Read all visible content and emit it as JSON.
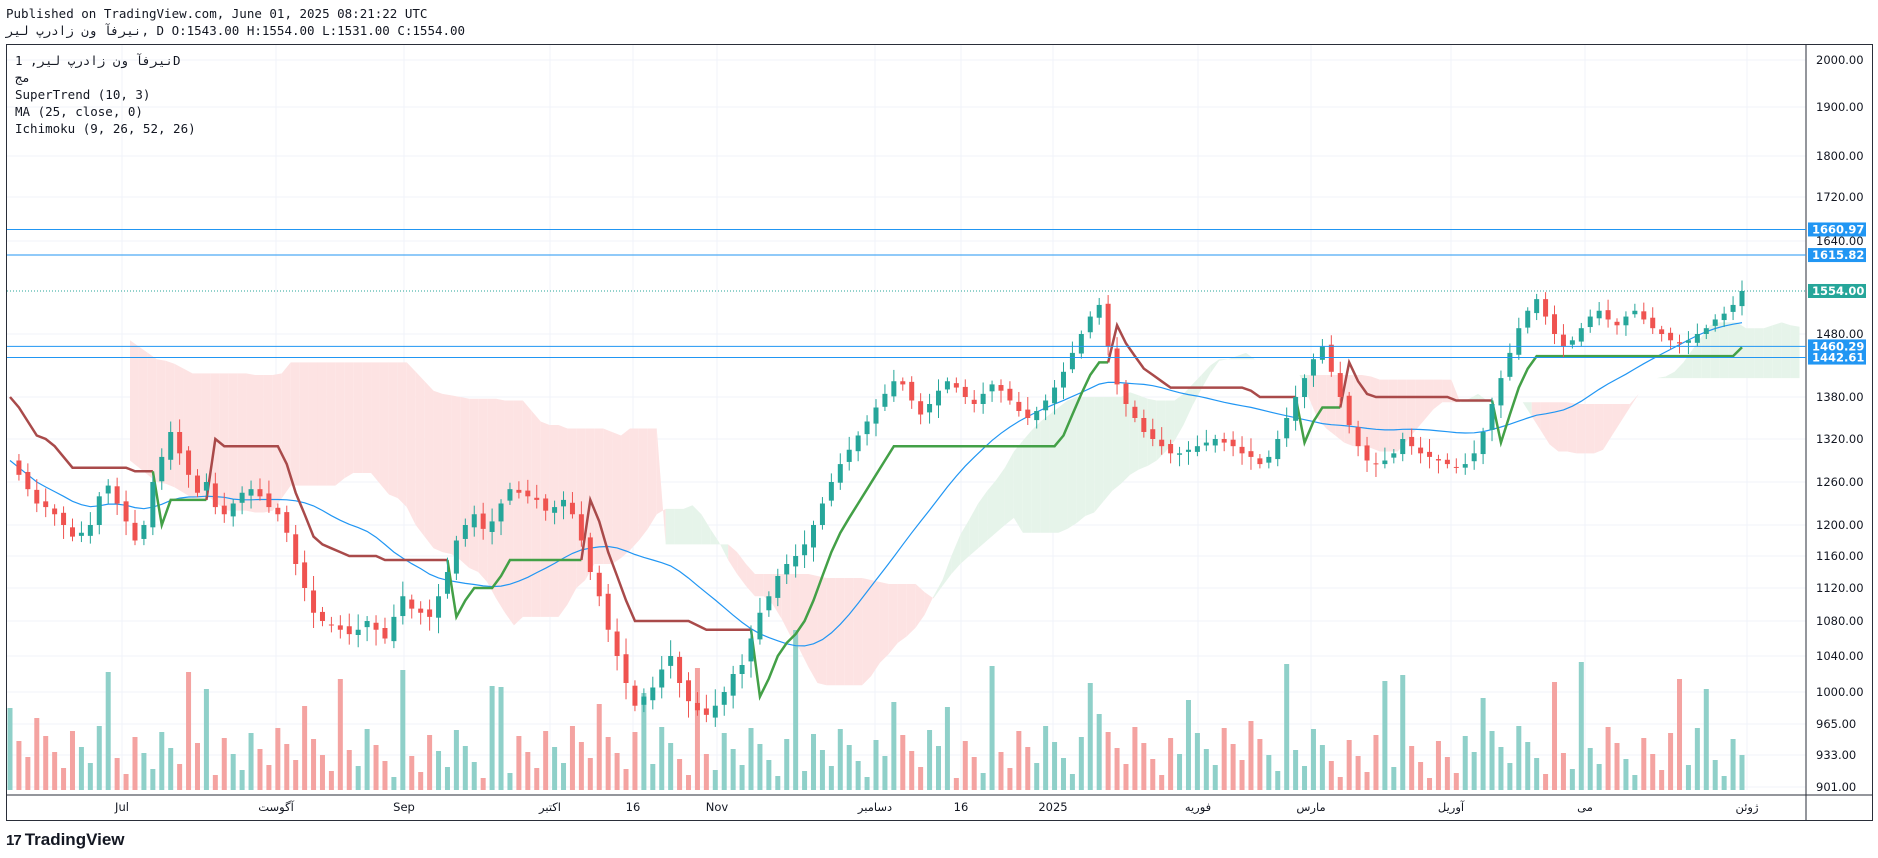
{
  "header": {
    "published": "Published on TradingView.com, June 01, 2025 08:21:22 UTC",
    "ohlc": "نیرفآ ون زادرپ لیر, D O:1543.00 H:1554.00 L:1531.00 C:1554.00"
  },
  "legend": {
    "symbol": "نیرفآ ون زادرپ لیر, 1D",
    "sub": "مج",
    "supertrend": "SuperTrend (10, 3)",
    "ma": "MA (25, close, 0)",
    "ichimoku": "Ichimoku (9, 26, 52, 26)"
  },
  "brand": {
    "name": "TradingView",
    "logo_text": "17"
  },
  "colors": {
    "up": "#26a69a",
    "down": "#ef5350",
    "up_vol": "#8fd0c9",
    "down_vol": "#f4a3a1",
    "ma": "#2196f3",
    "st_up": "#43a047",
    "st_down": "#a94a4a",
    "kumo_bull": "#e6f4ea",
    "kumo_bear": "#fde3e3",
    "hline": "#2196f3",
    "price_badge": "#26a69a"
  },
  "chart_data": {
    "type": "candlestick",
    "title": "نیرفآ ون زادرپ لیر, 1D",
    "y_axis": {
      "ticks": [
        "2000.00",
        "1900.00",
        "1800.00",
        "1720.00",
        "1640.00",
        "1480.00",
        "1380.00",
        "1320.00",
        "1260.00",
        "1200.00",
        "1160.00",
        "1120.00",
        "1080.00",
        "1040.00",
        "1000.00",
        "965.00",
        "933.00",
        "901.00"
      ],
      "range": [
        901,
        2000
      ]
    },
    "x_axis": {
      "labels": [
        "Jul",
        "آگوست",
        "Sep",
        "اکتبر",
        "16",
        "Nov",
        "دسامبر",
        "16",
        "2025",
        "فوریه",
        "مارس",
        "آوریل",
        "می",
        "ژوئن"
      ]
    },
    "horizontal_lines": [
      {
        "value": 1660.97,
        "label": "1660.97"
      },
      {
        "value": 1615.82,
        "label": "1615.82"
      },
      {
        "value": 1460.29,
        "label": "1460.29"
      },
      {
        "value": 1442.61,
        "label": "1442.61"
      }
    ],
    "last_price": {
      "value": 1554.0,
      "label": "1554.00"
    },
    "last_ohlc": {
      "open": 1543.0,
      "high": 1554.0,
      "low": 1531.0,
      "close": 1554.0
    },
    "close_series": [
      1290,
      1270,
      1250,
      1230,
      1225,
      1215,
      1200,
      1185,
      1190,
      1200,
      1240,
      1255,
      1230,
      1205,
      1180,
      1200,
      1260,
      1295,
      1330,
      1300,
      1270,
      1245,
      1260,
      1225,
      1215,
      1230,
      1245,
      1250,
      1240,
      1225,
      1215,
      1190,
      1150,
      1120,
      1090,
      1080,
      1075,
      1070,
      1065,
      1070,
      1080,
      1070,
      1060,
      1085,
      1110,
      1095,
      1090,
      1085,
      1110,
      1140,
      1180,
      1200,
      1215,
      1195,
      1205,
      1230,
      1250,
      1245,
      1240,
      1235,
      1220,
      1225,
      1235,
      1215,
      1180,
      1140,
      1110,
      1070,
      1040,
      1010,
      985,
      995,
      1005,
      1025,
      1040,
      1010,
      990,
      980,
      975,
      985,
      1000,
      1020,
      1030,
      1060,
      1090,
      1110,
      1135,
      1150,
      1160,
      1175,
      1200,
      1230,
      1260,
      1285,
      1305,
      1325,
      1345,
      1365,
      1385,
      1405,
      1400,
      1375,
      1355,
      1370,
      1390,
      1405,
      1395,
      1380,
      1370,
      1385,
      1400,
      1390,
      1375,
      1360,
      1350,
      1360,
      1375,
      1395,
      1420,
      1450,
      1480,
      1510,
      1530,
      1460,
      1400,
      1370,
      1350,
      1330,
      1320,
      1310,
      1300,
      1300,
      1305,
      1310,
      1315,
      1320,
      1315,
      1310,
      1300,
      1295,
      1285,
      1295,
      1320,
      1350,
      1380,
      1410,
      1440,
      1460,
      1420,
      1380,
      1340,
      1310,
      1290,
      1285,
      1290,
      1300,
      1320,
      1310,
      1300,
      1295,
      1290,
      1285,
      1280,
      1285,
      1300,
      1330,
      1370,
      1410,
      1450,
      1490,
      1520,
      1540,
      1510,
      1480,
      1460,
      1470,
      1490,
      1510,
      1520,
      1505,
      1495,
      1510,
      1520,
      1505,
      1490,
      1480,
      1470,
      1465,
      1470,
      1480,
      1490,
      1505,
      1515,
      1530,
      1554
    ]
  }
}
